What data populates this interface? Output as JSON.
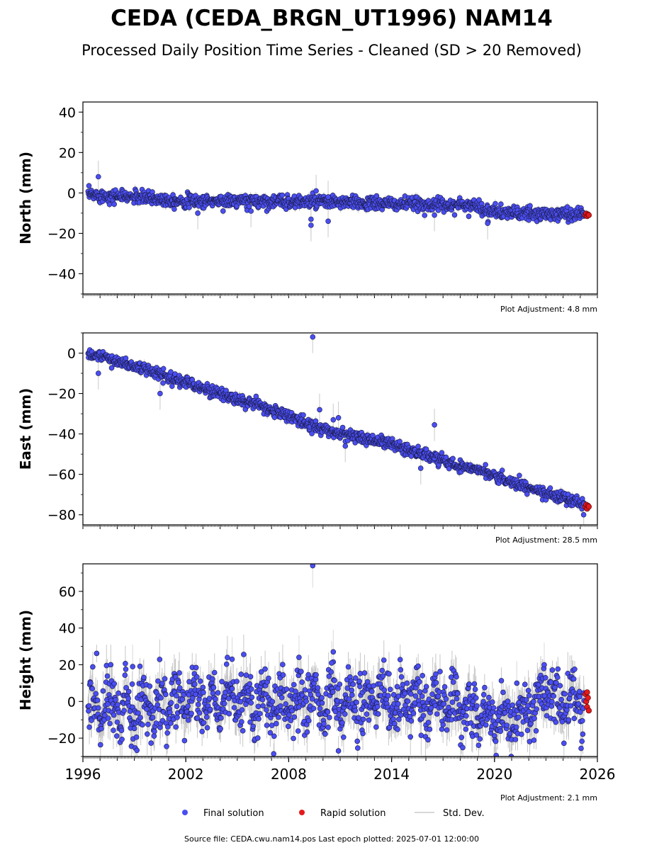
{
  "figure": {
    "title": "CEDA (CEDA_BRGN_UT1996) NAM14",
    "subtitle": "Processed Daily Position Time Series - Cleaned (SD > 20 Removed)",
    "source_note": "Source file: CEDA.cwu.nam14.pos  Last epoch plotted: 2025-07-01 12:00:00"
  },
  "legend": {
    "items": [
      {
        "label": "Final solution",
        "color": "#4a4ef2"
      },
      {
        "label": "Rapid solution",
        "color": "#e31a1c"
      },
      {
        "label": "Std. Dev.",
        "color": "#cccccc"
      }
    ]
  },
  "chart_data": [
    {
      "type": "scatter",
      "ylabel": "North (mm)",
      "xlim": [
        1996,
        2026
      ],
      "ylim": [
        -50,
        45
      ],
      "yticks": [
        -40,
        -20,
        0,
        20,
        40
      ],
      "adjustment": "Plot Adjustment: 4.8 mm",
      "final_trend": [
        [
          1996.3,
          -1
        ],
        [
          1999,
          -2
        ],
        [
          2002,
          -4
        ],
        [
          2006,
          -4
        ],
        [
          2010,
          -4.5
        ],
        [
          2014,
          -5.5
        ],
        [
          2018,
          -6
        ],
        [
          2019.1,
          -6
        ],
        [
          2019.4,
          -9
        ],
        [
          2022,
          -10.5
        ],
        [
          2025.4,
          -10.5
        ]
      ],
      "final_scatter_sd": 1.6,
      "final_outliers": [
        [
          1996.9,
          8
        ],
        [
          2009.3,
          -13
        ],
        [
          2009.3,
          -16
        ],
        [
          2009.6,
          1
        ],
        [
          2010.3,
          -14
        ],
        [
          2010.3,
          -2
        ],
        [
          2019.6,
          -15
        ],
        [
          2002.7,
          -10
        ],
        [
          2016.5,
          -11
        ],
        [
          2005.8,
          -9
        ]
      ],
      "rapid": [
        [
          2025.3,
          -11
        ],
        [
          2025.35,
          -10.2
        ],
        [
          2025.4,
          -11.5
        ],
        [
          2025.45,
          -10.6
        ],
        [
          2025.5,
          -11
        ]
      ]
    },
    {
      "type": "scatter",
      "ylabel": "East (mm)",
      "xlim": [
        1996,
        2026
      ],
      "ylim": [
        -85,
        10
      ],
      "yticks": [
        -80,
        -60,
        -40,
        -20,
        0
      ],
      "adjustment": "Plot Adjustment: 28.5 mm",
      "final_trend": [
        [
          1996.3,
          0
        ],
        [
          2000,
          -9
        ],
        [
          2004,
          -20
        ],
        [
          2008,
          -31
        ],
        [
          2010,
          -38
        ],
        [
          2014,
          -45
        ],
        [
          2018,
          -56
        ],
        [
          2019.2,
          -57
        ],
        [
          2019.5,
          -59
        ],
        [
          2022,
          -67
        ],
        [
          2025.4,
          -75
        ]
      ],
      "final_scatter_sd": 1.4,
      "final_outliers": [
        [
          2009.4,
          8
        ],
        [
          2016.5,
          -35.5
        ],
        [
          2009.8,
          -28
        ],
        [
          2010.6,
          -33
        ],
        [
          2010.9,
          -32
        ],
        [
          1996.9,
          -10
        ],
        [
          2000.5,
          -20
        ],
        [
          2011.3,
          -46
        ],
        [
          2015.7,
          -57
        ],
        [
          2025.2,
          -80
        ]
      ],
      "rapid": [
        [
          2025.3,
          -76
        ],
        [
          2025.35,
          -75
        ],
        [
          2025.4,
          -77
        ],
        [
          2025.45,
          -75.5
        ],
        [
          2025.5,
          -76
        ]
      ]
    },
    {
      "type": "scatter",
      "ylabel": "Height (mm)",
      "xlim": [
        1996,
        2026
      ],
      "ylim": [
        -30,
        75
      ],
      "yticks": [
        -20,
        0,
        20,
        40,
        60
      ],
      "xticks": [
        1996,
        2002,
        2008,
        2014,
        2020,
        2026
      ],
      "adjustment": "Plot Adjustment: 2.1 mm",
      "final_trend": [
        [
          1996.3,
          -2
        ],
        [
          2000,
          -3
        ],
        [
          2004,
          0
        ],
        [
          2008,
          0
        ],
        [
          2012,
          0
        ],
        [
          2016,
          0
        ],
        [
          2019,
          -2
        ],
        [
          2020,
          -12
        ],
        [
          2021.5,
          -8
        ],
        [
          2022.5,
          0
        ],
        [
          2023,
          3
        ],
        [
          2025.4,
          0
        ]
      ],
      "final_scatter_sd": 8,
      "final_outliers": [
        [
          2009.4,
          74
        ],
        [
          2010.6,
          27
        ],
        [
          2010.5,
          21
        ],
        [
          2004.7,
          23
        ],
        [
          2008.6,
          24
        ],
        [
          1998.9,
          19
        ],
        [
          2021.3,
          10
        ],
        [
          2022.9,
          20
        ]
      ],
      "rapid": [
        [
          2025.3,
          4
        ],
        [
          2025.35,
          0
        ],
        [
          2025.4,
          -3
        ],
        [
          2025.45,
          2
        ],
        [
          2025.5,
          -5
        ],
        [
          2025.4,
          5
        ]
      ]
    }
  ]
}
